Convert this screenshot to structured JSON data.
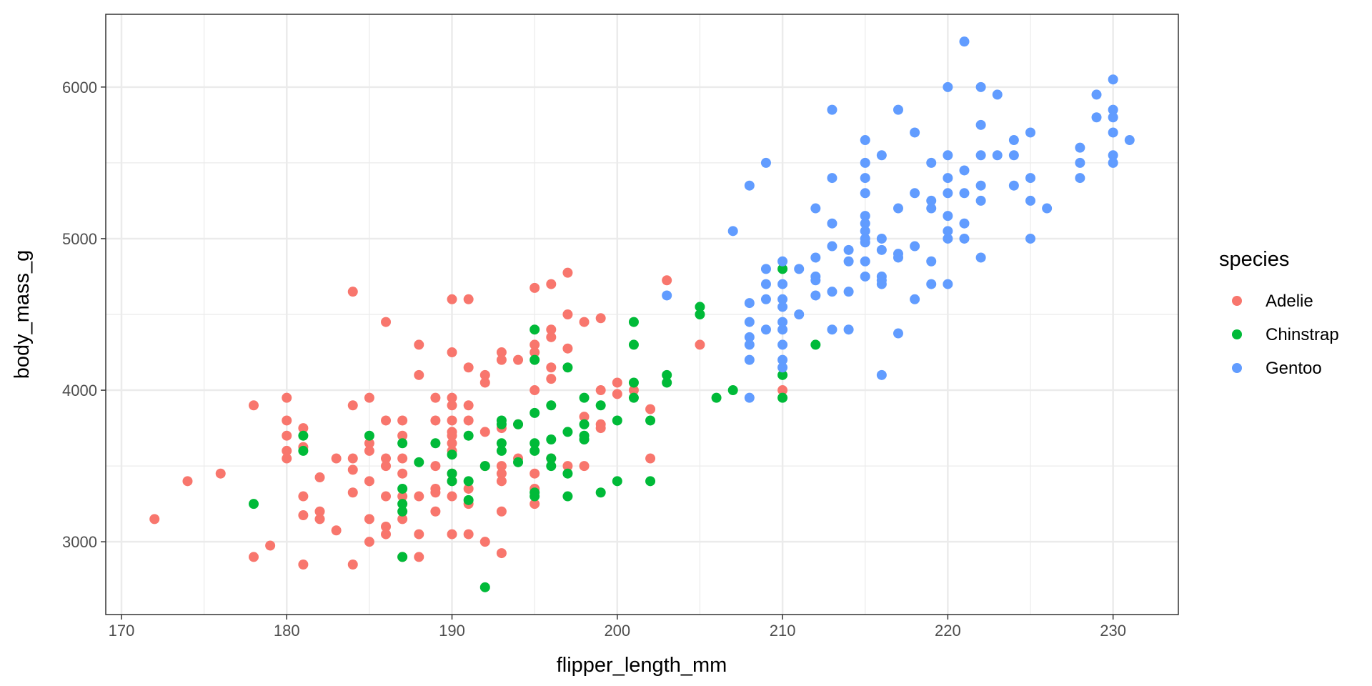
{
  "chart_data": {
    "type": "scatter",
    "x_label": "flipper_length_mm",
    "y_label": "body_mass_g",
    "legend_title": "species",
    "legend": "right",
    "xlim": [
      169.05,
      233.95
    ],
    "ylim": [
      2520,
      6480
    ],
    "xticks": [
      170,
      180,
      190,
      200,
      210,
      220,
      230
    ],
    "yticks": [
      3000,
      4000,
      5000,
      6000
    ],
    "x_minor_ticks": [
      175,
      185,
      195,
      205,
      215,
      225
    ],
    "y_minor_ticks": [
      3500,
      4500,
      5500
    ],
    "grid": true,
    "series": [
      {
        "name": "Adelie",
        "color": "#F8766D",
        "x": [
          172,
          174,
          176,
          178,
          178,
          179,
          180,
          180,
          180,
          180,
          180,
          181,
          181,
          181,
          181,
          181,
          182,
          182,
          182,
          183,
          183,
          184,
          184,
          184,
          184,
          184,
          184,
          185,
          185,
          185,
          185,
          185,
          185,
          186,
          186,
          186,
          186,
          186,
          186,
          186,
          187,
          187,
          187,
          187,
          187,
          187,
          187,
          188,
          188,
          188,
          188,
          188,
          189,
          189,
          189,
          189,
          189,
          189,
          190,
          190,
          190,
          190,
          190,
          190,
          190,
          190,
          190,
          190,
          190,
          190,
          190,
          191,
          191,
          191,
          191,
          191,
          191,
          191,
          192,
          192,
          192,
          192,
          192,
          193,
          193,
          193,
          193,
          193,
          193,
          193,
          193,
          194,
          194,
          194,
          195,
          195,
          195,
          195,
          195,
          195,
          195,
          196,
          196,
          196,
          196,
          196,
          196,
          197,
          197,
          197,
          197,
          198,
          198,
          198,
          199,
          199,
          199,
          199,
          200,
          200,
          201,
          202,
          202,
          203,
          205,
          210
        ],
        "values": [
          3150,
          3400,
          3450,
          3900,
          2900,
          2975,
          3950,
          3800,
          3700,
          3600,
          3550,
          3750,
          3625,
          3300,
          3175,
          2850,
          3425,
          3200,
          3150,
          3075,
          3550,
          4650,
          3900,
          3550,
          3475,
          3325,
          2850,
          3950,
          3650,
          3600,
          3400,
          3150,
          3000,
          4450,
          3800,
          3550,
          3500,
          3300,
          3100,
          3050,
          3800,
          3700,
          3550,
          3450,
          3300,
          3150,
          2900,
          4300,
          4100,
          3300,
          3050,
          2900,
          3950,
          3800,
          3500,
          3350,
          3325,
          3200,
          4600,
          4250,
          3950,
          3900,
          3800,
          3725,
          3700,
          3650,
          3600,
          3450,
          3400,
          3300,
          3050,
          4600,
          4150,
          3900,
          3800,
          3350,
          3250,
          3050,
          4100,
          4050,
          3725,
          3500,
          3000,
          4250,
          4200,
          3750,
          3500,
          3450,
          3400,
          3200,
          2925,
          4200,
          3775,
          3550,
          4675,
          4300,
          4250,
          4000,
          3450,
          3350,
          3250,
          4700,
          4400,
          4350,
          4150,
          4075,
          3550,
          4775,
          4500,
          4275,
          3500,
          4450,
          3825,
          3500,
          4475,
          4000,
          3775,
          3750,
          4050,
          3975,
          4000,
          3875,
          3550,
          4725,
          4300,
          4000
        ]
      },
      {
        "name": "Chinstrap",
        "color": "#00BA38",
        "x": [
          178,
          181,
          181,
          185,
          187,
          187,
          187,
          187,
          187,
          188,
          189,
          190,
          190,
          190,
          191,
          191,
          191,
          192,
          192,
          193,
          193,
          193,
          193,
          194,
          194,
          195,
          195,
          195,
          195,
          195,
          195,
          195,
          196,
          196,
          196,
          196,
          197,
          197,
          197,
          197,
          198,
          198,
          198,
          198,
          199,
          199,
          200,
          200,
          201,
          201,
          201,
          201,
          202,
          202,
          203,
          203,
          205,
          205,
          206,
          207,
          210,
          210,
          210,
          212
        ],
        "values": [
          3250,
          3700,
          3600,
          3700,
          3650,
          3350,
          3250,
          3200,
          2900,
          3525,
          3650,
          3575,
          3450,
          3400,
          3700,
          3400,
          3275,
          3500,
          2700,
          3800,
          3775,
          3650,
          3600,
          3525,
          3775,
          4400,
          4200,
          3850,
          3650,
          3600,
          3325,
          3300,
          3900,
          3675,
          3550,
          3500,
          4150,
          3725,
          3450,
          3300,
          3950,
          3775,
          3700,
          3675,
          3900,
          3325,
          3800,
          3400,
          4450,
          4300,
          4050,
          3950,
          3800,
          3400,
          4100,
          4050,
          4550,
          4500,
          3950,
          4000,
          4800,
          4100,
          3950,
          4300
        ]
      },
      {
        "name": "Gentoo",
        "color": "#619CFF",
        "x": [
          203,
          207,
          208,
          208,
          208,
          208,
          208,
          208,
          208,
          209,
          209,
          209,
          209,
          209,
          210,
          210,
          210,
          210,
          210,
          210,
          210,
          210,
          210,
          211,
          211,
          212,
          212,
          212,
          212,
          212,
          213,
          213,
          213,
          213,
          213,
          213,
          214,
          214,
          214,
          214,
          215,
          215,
          215,
          215,
          215,
          215,
          215,
          215,
          215,
          215,
          215,
          216,
          216,
          216,
          216,
          216,
          216,
          216,
          217,
          217,
          217,
          217,
          217,
          218,
          218,
          218,
          218,
          219,
          219,
          219,
          219,
          219,
          220,
          220,
          220,
          220,
          220,
          220,
          220,
          220,
          221,
          221,
          221,
          221,
          221,
          222,
          222,
          222,
          222,
          222,
          222,
          223,
          223,
          224,
          224,
          224,
          225,
          225,
          225,
          225,
          226,
          228,
          228,
          228,
          229,
          229,
          230,
          230,
          230,
          230,
          230,
          230,
          231
        ],
        "values": [
          4625,
          5050,
          5350,
          4575,
          4450,
          4350,
          4300,
          4200,
          3950,
          5500,
          4800,
          4700,
          4600,
          4400,
          4850,
          4700,
          4600,
          4550,
          4450,
          4400,
          4300,
          4200,
          4150,
          4800,
          4500,
          5200,
          4875,
          4750,
          4725,
          4625,
          5850,
          5400,
          5100,
          4950,
          4650,
          4400,
          4925,
          4850,
          4650,
          4400,
          5650,
          5500,
          5400,
          5300,
          5150,
          5100,
          5050,
          5000,
          4975,
          4850,
          4750,
          5550,
          5000,
          4925,
          4750,
          4725,
          4700,
          4100,
          5850,
          5200,
          4900,
          4875,
          4375,
          5700,
          5300,
          4950,
          4600,
          5500,
          5250,
          5200,
          4850,
          4700,
          6000,
          5550,
          5400,
          5300,
          5150,
          5050,
          5000,
          4700,
          6300,
          5450,
          5300,
          5100,
          5000,
          6000,
          5750,
          5550,
          5350,
          5250,
          4875,
          5950,
          5550,
          5650,
          5550,
          5350,
          5700,
          5400,
          5250,
          5000,
          5200,
          5600,
          5500,
          5400,
          5950,
          5800,
          6050,
          5850,
          5800,
          5700,
          5550,
          5500,
          5650
        ]
      }
    ]
  }
}
